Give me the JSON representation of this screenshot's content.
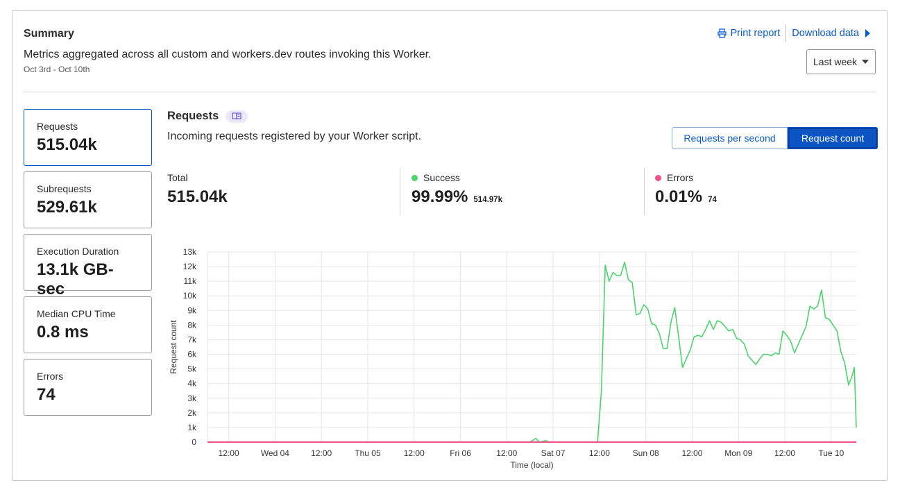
{
  "summary": {
    "title": "Summary",
    "description": "Metrics aggregated across all custom and workers.dev routes invoking this Worker.",
    "date_range": "Oct 3rd - Oct 10th",
    "print_label": "Print report",
    "download_label": "Download data",
    "range_select": "Last week"
  },
  "tiles": [
    {
      "label": "Requests",
      "value": "515.04k",
      "active": true
    },
    {
      "label": "Subrequests",
      "value": "529.61k",
      "active": false
    },
    {
      "label": "Execution Duration",
      "value": "13.1k GB-sec",
      "active": false
    },
    {
      "label": "Median CPU Time",
      "value": "0.8 ms",
      "active": false
    },
    {
      "label": "Errors",
      "value": "74",
      "active": false
    }
  ],
  "panel": {
    "title": "Requests",
    "description": "Incoming requests registered by your Worker script.",
    "toggle_rps": "Requests per second",
    "toggle_count": "Request count"
  },
  "stats": {
    "total": {
      "label": "Total",
      "value": "515.04k"
    },
    "success": {
      "label": "Success",
      "value": "99.99%",
      "sub": "514.97k",
      "color": "#4ad46b"
    },
    "errors": {
      "label": "Errors",
      "value": "0.01%",
      "sub": "74",
      "color": "#f0508a"
    }
  },
  "colors": {
    "accent": "#0a54c4",
    "success": "#4ad46b",
    "errors": "#f0508a"
  },
  "chart_data": {
    "type": "line",
    "xlabel": "Time (local)",
    "ylabel": "Request count",
    "ylim": [
      0,
      13000
    ],
    "y_ticks": [
      0,
      1000,
      2000,
      3000,
      4000,
      5000,
      6000,
      7000,
      8000,
      9000,
      10000,
      11000,
      12000,
      13000
    ],
    "y_tick_labels": [
      "0",
      "1k",
      "2k",
      "3k",
      "4k",
      "5k",
      "6k",
      "7k",
      "8k",
      "9k",
      "10k",
      "11k",
      "12k",
      "13k"
    ],
    "x_range_hours": [
      6.5,
      174.5
    ],
    "x_ticks": [
      {
        "hour": 12,
        "label": "12:00"
      },
      {
        "hour": 24,
        "label": "Wed 04"
      },
      {
        "hour": 36,
        "label": "12:00"
      },
      {
        "hour": 48,
        "label": "Thu 05"
      },
      {
        "hour": 60,
        "label": "12:00"
      },
      {
        "hour": 72,
        "label": "Fri 06"
      },
      {
        "hour": 84,
        "label": "12:00"
      },
      {
        "hour": 96,
        "label": "Sat 07"
      },
      {
        "hour": 108,
        "label": "12:00"
      },
      {
        "hour": 120,
        "label": "Sun 08"
      },
      {
        "hour": 132,
        "label": "12:00"
      },
      {
        "hour": 144,
        "label": "Mon 09"
      },
      {
        "hour": 156,
        "label": "12:00"
      },
      {
        "hour": 168,
        "label": "Tue 10"
      }
    ],
    "series": [
      {
        "name": "Success",
        "color": "#4ad46b",
        "points": [
          [
            6.5,
            0
          ],
          [
            90,
            0
          ],
          [
            91.5,
            250
          ],
          [
            92.5,
            0
          ],
          [
            94,
            100
          ],
          [
            95,
            0
          ],
          [
            106,
            0
          ],
          [
            107.5,
            0
          ],
          [
            108.5,
            3500
          ],
          [
            109.5,
            12100
          ],
          [
            110.5,
            11000
          ],
          [
            111.5,
            11600
          ],
          [
            112.5,
            11400
          ],
          [
            113.5,
            11400
          ],
          [
            114.5,
            12300
          ],
          [
            115.5,
            11100
          ],
          [
            116.5,
            10900
          ],
          [
            117.5,
            8700
          ],
          [
            118.5,
            8800
          ],
          [
            119.5,
            9400
          ],
          [
            120.5,
            9100
          ],
          [
            121.5,
            8100
          ],
          [
            122.5,
            8000
          ],
          [
            123.5,
            7400
          ],
          [
            124.5,
            6400
          ],
          [
            125.5,
            6400
          ],
          [
            126.5,
            8200
          ],
          [
            127.5,
            9200
          ],
          [
            128.5,
            7200
          ],
          [
            129.5,
            5100
          ],
          [
            130.5,
            5700
          ],
          [
            131.5,
            6300
          ],
          [
            132.5,
            7200
          ],
          [
            133.5,
            7300
          ],
          [
            134.5,
            7200
          ],
          [
            135.5,
            7700
          ],
          [
            136.5,
            8300
          ],
          [
            137.5,
            7700
          ],
          [
            138.5,
            8300
          ],
          [
            139.5,
            8200
          ],
          [
            140.5,
            7900
          ],
          [
            141.5,
            7600
          ],
          [
            142.5,
            7700
          ],
          [
            143.5,
            7100
          ],
          [
            144.5,
            7000
          ],
          [
            145.5,
            6700
          ],
          [
            146.5,
            5900
          ],
          [
            147.5,
            5600
          ],
          [
            148.5,
            5300
          ],
          [
            149.5,
            5700
          ],
          [
            150.5,
            6000
          ],
          [
            151.5,
            6000
          ],
          [
            152.5,
            5900
          ],
          [
            153.5,
            6100
          ],
          [
            154.5,
            6000
          ],
          [
            155.5,
            7600
          ],
          [
            156.5,
            7300
          ],
          [
            157.5,
            6900
          ],
          [
            158.5,
            6100
          ],
          [
            159.5,
            6700
          ],
          [
            160.5,
            7300
          ],
          [
            161.5,
            7900
          ],
          [
            162.5,
            9300
          ],
          [
            163.5,
            9100
          ],
          [
            164.5,
            9300
          ],
          [
            165.5,
            10400
          ],
          [
            166.5,
            8500
          ],
          [
            167.5,
            8400
          ],
          [
            168.5,
            8000
          ],
          [
            169.5,
            7600
          ],
          [
            170.5,
            6200
          ],
          [
            171.5,
            5400
          ],
          [
            172.5,
            3900
          ],
          [
            173.5,
            4600
          ],
          [
            174,
            5100
          ],
          [
            174.5,
            1000
          ]
        ]
      },
      {
        "name": "Errors",
        "color": "#f0508a",
        "points": [
          [
            6.5,
            0
          ],
          [
            174.5,
            0
          ]
        ]
      }
    ]
  }
}
